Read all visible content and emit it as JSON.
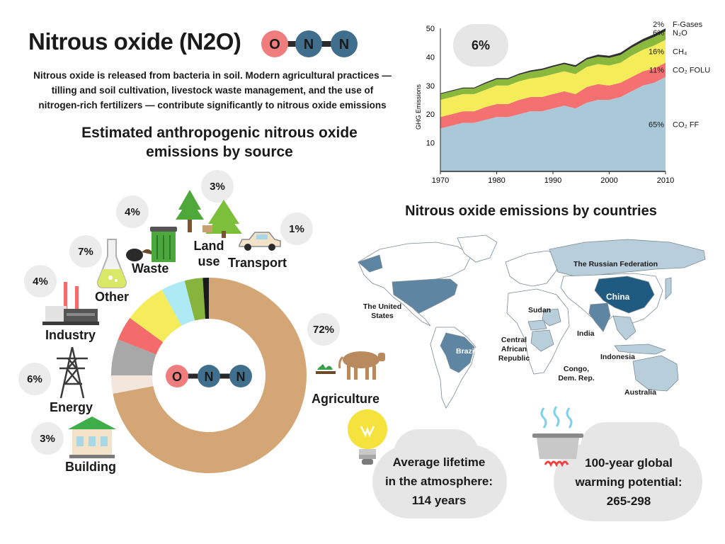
{
  "header": {
    "title": "Nitrous oxide (N2O)",
    "description_lines": [
      "Nitrous oxide is released from bacteria in soil. Modern agricultural practices —",
      "tilling and soil cultivation, livestock waste management, and the use of",
      "nitrogen-rich fertilizers — contribute significantly to nitrous oxide emissions"
    ],
    "molecule_atoms": [
      "O",
      "N",
      "N"
    ]
  },
  "donut": {
    "title_lines": [
      "Estimated anthropogenic nitrous oxide",
      "emissions by source"
    ],
    "center_atoms": [
      "O",
      "N",
      "N"
    ]
  },
  "map": {
    "title": "Nitrous oxide emissions by countries",
    "labels": {
      "russia": "The Russian Federation",
      "usa": [
        "The United",
        "States"
      ],
      "china": "China",
      "sudan": "Sudan",
      "india": "India",
      "car": [
        "Central",
        "African",
        "Republic"
      ],
      "brazil": "Brazil",
      "congo": [
        "Congo,",
        "Dem. Rep."
      ],
      "indonesia": "Indonesia",
      "australia": "Australia"
    }
  },
  "info": {
    "lifetime_lines": [
      "Average lifetime",
      "in the atmosphere:",
      "114 years"
    ],
    "gwp_lines": [
      "100-year global",
      "warming potential:",
      "265-298"
    ]
  },
  "chart_data": [
    {
      "type": "pie",
      "title": "Estimated anthropogenic nitrous oxide emissions by source",
      "slices": [
        {
          "label": "Agriculture",
          "value": 72,
          "pct_label": "72%",
          "color": "#d4a676"
        },
        {
          "label": "Building",
          "value": 3,
          "pct_label": "3%",
          "color": "#f3e6dc"
        },
        {
          "label": "Energy",
          "value": 6,
          "pct_label": "6%",
          "color": "#a8a8a8"
        },
        {
          "label": "Industry",
          "value": 4,
          "pct_label": "4%",
          "color": "#f36b6b"
        },
        {
          "label": "Other",
          "value": 7,
          "pct_label": "7%",
          "color": "#f4ec5a"
        },
        {
          "label": "Waste",
          "value": 4,
          "pct_label": "4%",
          "color": "#aeeaf4"
        },
        {
          "label": "Land use",
          "value": 3,
          "pct_label": "3%",
          "color": "#86b43c"
        },
        {
          "label": "Transport",
          "value": 1,
          "pct_label": "1%",
          "color": "#1a1a1a"
        }
      ]
    },
    {
      "type": "area",
      "ylabel": "GHG Emissions",
      "xlim": [
        1970,
        2010
      ],
      "ylim": [
        0,
        50
      ],
      "x_ticks": [
        1970,
        1980,
        1990,
        2000,
        2010
      ],
      "y_ticks": [
        10,
        20,
        30,
        40,
        50
      ],
      "annotation": "6%",
      "x": [
        1970,
        1972,
        1974,
        1976,
        1978,
        1980,
        1982,
        1984,
        1986,
        1988,
        1990,
        1992,
        1994,
        1996,
        1998,
        2000,
        2002,
        2004,
        2006,
        2008,
        2010
      ],
      "series": [
        {
          "name": "CO₂ FF",
          "pct_label": "65%",
          "color": "#a9c8d8",
          "values": [
            15,
            16,
            17,
            17,
            18,
            19,
            19,
            20,
            21,
            21,
            22,
            23,
            22,
            24,
            25,
            25,
            26,
            28,
            30,
            31,
            33
          ]
        },
        {
          "name": "CO₂ FOLU",
          "pct_label": "11%",
          "color": "#f57070",
          "values": [
            4,
            4,
            4,
            4,
            4.5,
            4.5,
            4.5,
            5,
            5,
            5,
            5,
            5,
            5,
            5.5,
            5.5,
            5,
            5,
            5,
            5,
            5,
            5
          ]
        },
        {
          "name": "CH₄",
          "pct_label": "16%",
          "color": "#f5ec5a",
          "values": [
            6,
            6,
            6,
            6,
            6,
            6.5,
            6.5,
            6.5,
            6.5,
            7,
            7,
            7,
            7,
            7,
            7,
            7,
            7,
            7.5,
            7.5,
            8,
            8
          ]
        },
        {
          "name": "N₂O",
          "pct_label": "6%",
          "color": "#8ab83c",
          "values": [
            2,
            2,
            2,
            2,
            2.2,
            2.2,
            2.2,
            2.3,
            2.3,
            2.4,
            2.5,
            2.5,
            2.5,
            2.6,
            2.6,
            2.7,
            2.7,
            2.8,
            2.9,
            3,
            3
          ]
        },
        {
          "name": "F-Gases",
          "pct_label": "2%",
          "color": "#2f2f2f",
          "values": [
            0.3,
            0.3,
            0.3,
            0.3,
            0.4,
            0.4,
            0.4,
            0.4,
            0.5,
            0.5,
            0.5,
            0.5,
            0.6,
            0.6,
            0.7,
            0.7,
            0.8,
            0.8,
            0.9,
            1,
            1
          ]
        }
      ]
    }
  ]
}
